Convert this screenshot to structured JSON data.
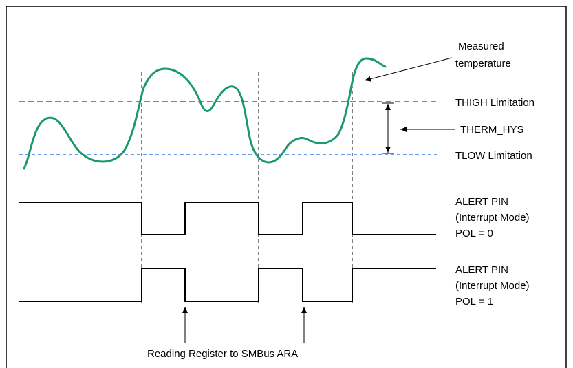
{
  "labels": {
    "measured_line1": "Measured",
    "measured_line2": "temperature",
    "thigh": "THIGH Limitation",
    "therm_hys": "THERM_HYS",
    "tlow": "TLOW Limitation",
    "alert0_line1": "ALERT PIN",
    "alert0_line2": "(Interrupt Mode)",
    "alert0_line3": "POL = 0",
    "alert1_line1": "ALERT PIN",
    "alert1_line2": "(Interrupt Mode)",
    "alert1_line3": "POL = 1",
    "reading": "Reading Register to SMBus ARA"
  },
  "colors": {
    "temperature_curve": "#1a9a6a",
    "thigh_line": "#e8242a",
    "tlow_line": "#3b7ddd",
    "signal": "#000000",
    "frame": "#000000"
  }
}
